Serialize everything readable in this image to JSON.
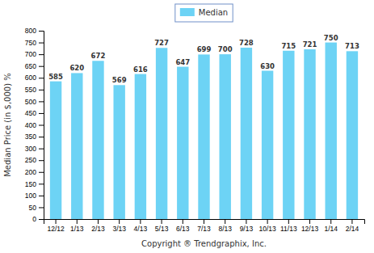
{
  "chart_data": {
    "type": "bar",
    "categories": [
      "12/12",
      "1/13",
      "2/13",
      "3/13",
      "4/13",
      "5/13",
      "6/13",
      "7/13",
      "8/13",
      "9/13",
      "10/13",
      "11/13",
      "12/13",
      "1/14",
      "2/14"
    ],
    "series": [
      {
        "name": "Median",
        "color": "#6dd3f5",
        "values": [
          585,
          620,
          672,
          569,
          616,
          727,
          647,
          699,
          700,
          728,
          630,
          715,
          721,
          750,
          713
        ]
      }
    ],
    "ylim": [
      0,
      800
    ],
    "yticks": [
      0,
      50,
      100,
      150,
      200,
      250,
      300,
      350,
      400,
      450,
      500,
      550,
      600,
      650,
      700,
      750,
      800
    ],
    "ylabel": "Median Price (in $,000) %",
    "xlabel": "Copyright ® Trendgraphix, Inc.",
    "data_labels": true,
    "legend": "top",
    "grid": false
  }
}
